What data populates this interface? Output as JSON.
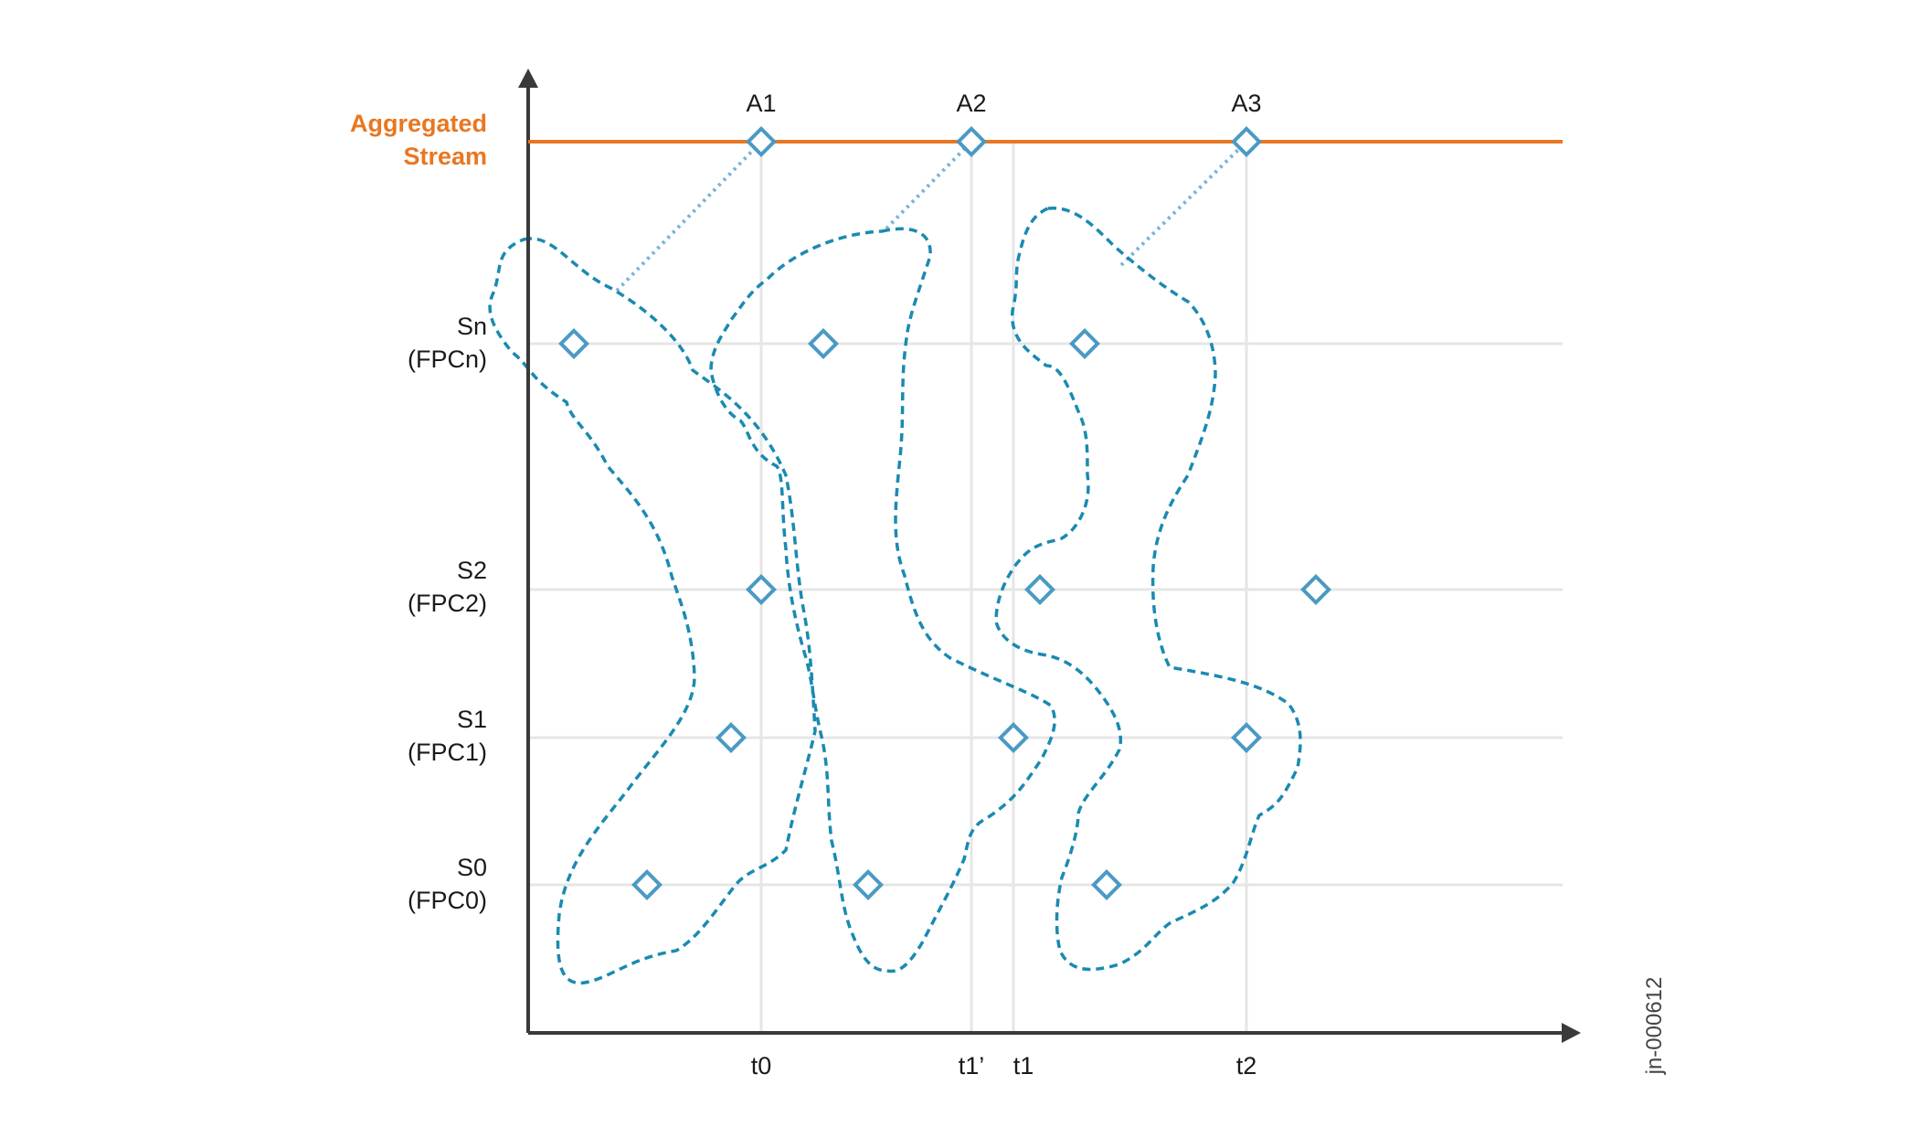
{
  "diagram": {
    "aggregated_label_line1": "Aggregated",
    "aggregated_label_line2": "Stream",
    "streams": [
      {
        "name": "Sn",
        "fpc": "(FPCn)"
      },
      {
        "name": "S2",
        "fpc": "(FPC2)"
      },
      {
        "name": "S1",
        "fpc": "(FPC1)"
      },
      {
        "name": "S0",
        "fpc": "(FPC0)"
      }
    ],
    "aggregates": [
      "A1",
      "A2",
      "A3"
    ],
    "time_labels": [
      "t0",
      "t1’",
      "t1",
      "t2"
    ],
    "figure_id": "jn-000612"
  },
  "colors": {
    "aggregated_stream": "#e87722",
    "marker": "#4a9ac4",
    "group_outline": "#1a8ab0",
    "grid": "#e6e6e6",
    "axis": "#3a3a3a"
  }
}
